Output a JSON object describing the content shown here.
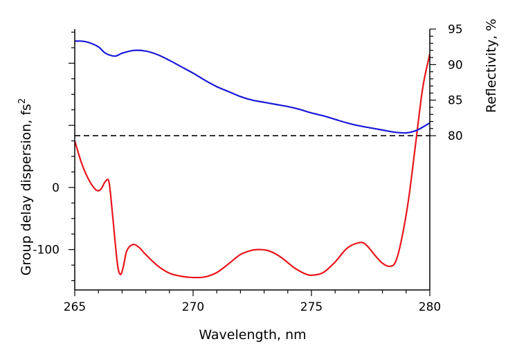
{
  "chart_data": {
    "type": "line",
    "xlabel": "Wavelength, nm",
    "ylabel_left": "Group delay dispersion, fs",
    "ylabel_left_sup": "2",
    "ylabel_right": "Reflectivity, %",
    "xlim": [
      265,
      280
    ],
    "ylim_left": [
      -165,
      255
    ],
    "ylim_right": [
      58.3,
      95
    ],
    "x_ticks": [
      265,
      270,
      275,
      280
    ],
    "y_left_ticks": [
      0,
      -100
    ],
    "y_right_ticks": [
      95,
      90,
      85,
      80
    ],
    "reference_line": {
      "axis": "right",
      "value": 80,
      "style": "dashed"
    },
    "series": [
      {
        "axis": "left",
        "color": "#e8141a",
        "points": [
          [
            265.0,
            75
          ],
          [
            265.3,
            38
          ],
          [
            265.6,
            12
          ],
          [
            265.9,
            -4
          ],
          [
            266.1,
            -3
          ],
          [
            266.3,
            10
          ],
          [
            266.45,
            8
          ],
          [
            266.6,
            -45
          ],
          [
            266.8,
            -122
          ],
          [
            266.93,
            -140
          ],
          [
            267.05,
            -128
          ],
          [
            267.2,
            -102
          ],
          [
            267.45,
            -92
          ],
          [
            267.7,
            -96
          ],
          [
            268.0,
            -108
          ],
          [
            268.5,
            -126
          ],
          [
            269.0,
            -138
          ],
          [
            269.5,
            -143
          ],
          [
            270.0,
            -145
          ],
          [
            270.5,
            -144
          ],
          [
            271.0,
            -137
          ],
          [
            271.5,
            -123
          ],
          [
            272.0,
            -108
          ],
          [
            272.5,
            -101
          ],
          [
            272.8,
            -100
          ],
          [
            273.2,
            -102
          ],
          [
            273.7,
            -112
          ],
          [
            274.3,
            -130
          ],
          [
            274.8,
            -140
          ],
          [
            275.1,
            -141
          ],
          [
            275.5,
            -137
          ],
          [
            276.0,
            -120
          ],
          [
            276.5,
            -98
          ],
          [
            277.0,
            -89
          ],
          [
            277.3,
            -92
          ],
          [
            277.7,
            -110
          ],
          [
            278.0,
            -122
          ],
          [
            278.3,
            -127
          ],
          [
            278.55,
            -120
          ],
          [
            278.8,
            -85
          ],
          [
            279.1,
            -20
          ],
          [
            279.4,
            70
          ],
          [
            279.7,
            160
          ],
          [
            280.0,
            215
          ]
        ]
      },
      {
        "axis": "right",
        "color": "#1818d8",
        "points": [
          [
            265.0,
            93.3
          ],
          [
            265.3,
            93.3
          ],
          [
            265.6,
            93.1
          ],
          [
            266.0,
            92.5
          ],
          [
            266.3,
            91.6
          ],
          [
            266.7,
            91.2
          ],
          [
            267.0,
            91.6
          ],
          [
            267.5,
            92.0
          ],
          [
            268.0,
            91.9
          ],
          [
            268.5,
            91.4
          ],
          [
            269.0,
            90.6
          ],
          [
            269.5,
            89.7
          ],
          [
            270.0,
            88.8
          ],
          [
            270.5,
            87.8
          ],
          [
            271.0,
            86.9
          ],
          [
            271.5,
            86.2
          ],
          [
            272.0,
            85.5
          ],
          [
            272.5,
            85.0
          ],
          [
            273.0,
            84.7
          ],
          [
            273.5,
            84.4
          ],
          [
            274.0,
            84.1
          ],
          [
            274.5,
            83.7
          ],
          [
            275.0,
            83.2
          ],
          [
            275.5,
            82.8
          ],
          [
            276.0,
            82.3
          ],
          [
            276.5,
            81.8
          ],
          [
            277.0,
            81.4
          ],
          [
            277.5,
            81.1
          ],
          [
            278.0,
            80.8
          ],
          [
            278.5,
            80.5
          ],
          [
            279.0,
            80.4
          ],
          [
            279.4,
            80.7
          ],
          [
            279.7,
            81.2
          ],
          [
            280.0,
            81.8
          ]
        ]
      }
    ]
  }
}
